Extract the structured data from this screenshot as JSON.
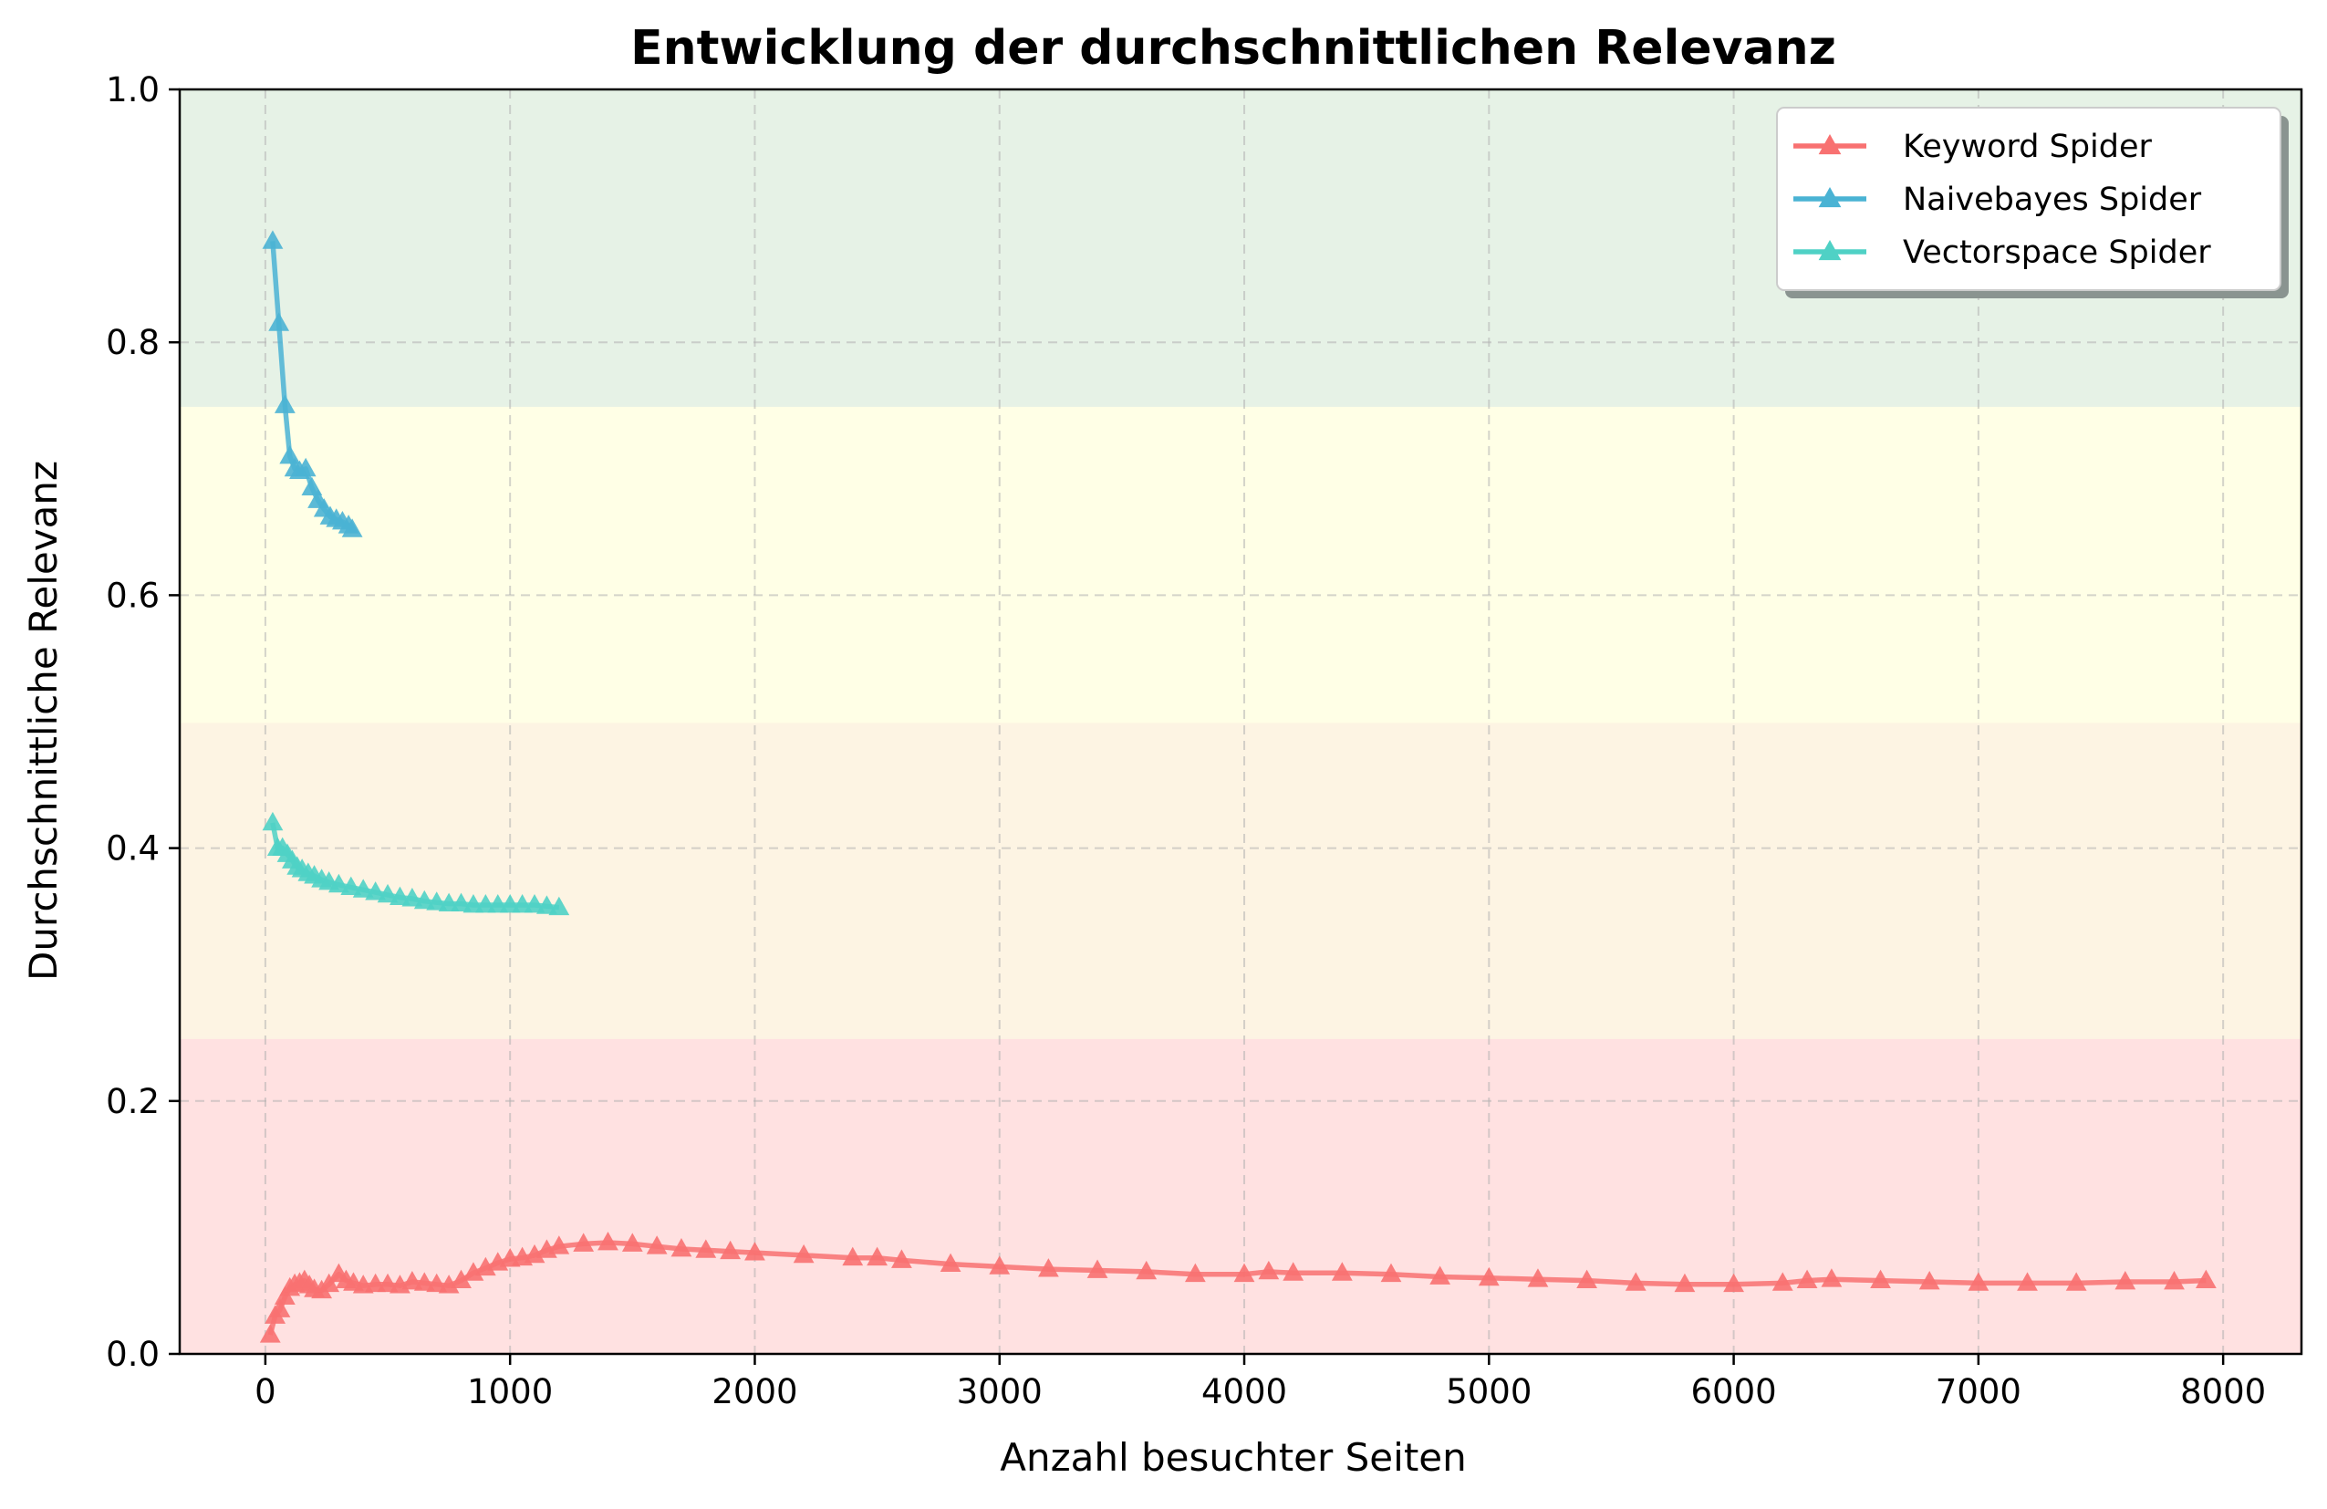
{
  "chart_data": {
    "type": "line",
    "title": "Entwicklung der durchschnittlichen Relevanz",
    "xlabel": "Anzahl besuchter Seiten",
    "ylabel": "Durchschnittliche Relevanz",
    "xlim": [
      -350,
      8320
    ],
    "ylim": [
      0,
      1.0
    ],
    "xticks": [
      0,
      1000,
      2000,
      3000,
      4000,
      5000,
      6000,
      7000,
      8000
    ],
    "xtick_labels": [
      "0",
      "1000",
      "2000",
      "3000",
      "4000",
      "5000",
      "6000",
      "7000",
      "8000"
    ],
    "yticks": [
      0.0,
      0.2,
      0.4,
      0.6,
      0.8,
      1.0
    ],
    "ytick_labels": [
      "0.0",
      "0.2",
      "0.4",
      "0.6",
      "0.8",
      "1.0"
    ],
    "grid": true,
    "legend_position": "top-right",
    "marker": "triangle-up",
    "bands": [
      {
        "from": 0.0,
        "to": 0.25,
        "color": "#ffe1e1"
      },
      {
        "from": 0.25,
        "to": 0.5,
        "color": "#fdf4e3"
      },
      {
        "from": 0.5,
        "to": 0.75,
        "color": "#ffffe6"
      },
      {
        "from": 0.75,
        "to": 1.0,
        "color": "#e6f2e6"
      }
    ],
    "series": [
      {
        "name": "Keyword Spider",
        "color": "#f87171",
        "x": [
          20,
          40,
          60,
          80,
          100,
          120,
          140,
          160,
          180,
          200,
          230,
          260,
          300,
          330,
          360,
          400,
          450,
          500,
          550,
          600,
          650,
          700,
          750,
          800,
          850,
          900,
          950,
          1000,
          1050,
          1100,
          1150,
          1200,
          1300,
          1400,
          1500,
          1600,
          1700,
          1800,
          1900,
          2000,
          2200,
          2400,
          2500,
          2600,
          2800,
          3000,
          3200,
          3400,
          3600,
          3800,
          4000,
          4100,
          4200,
          4400,
          4600,
          4800,
          5000,
          5200,
          5400,
          5600,
          5800,
          6000,
          6200,
          6300,
          6400,
          6600,
          6800,
          7000,
          7200,
          7400,
          7600,
          7800,
          7930
        ],
        "y": [
          0.015,
          0.03,
          0.035,
          0.045,
          0.052,
          0.055,
          0.056,
          0.058,
          0.054,
          0.051,
          0.05,
          0.055,
          0.063,
          0.058,
          0.056,
          0.054,
          0.055,
          0.055,
          0.054,
          0.057,
          0.056,
          0.055,
          0.054,
          0.058,
          0.064,
          0.068,
          0.072,
          0.075,
          0.076,
          0.078,
          0.082,
          0.085,
          0.087,
          0.088,
          0.087,
          0.085,
          0.083,
          0.082,
          0.081,
          0.08,
          0.078,
          0.076,
          0.076,
          0.074,
          0.071,
          0.069,
          0.067,
          0.066,
          0.065,
          0.063,
          0.063,
          0.065,
          0.064,
          0.064,
          0.063,
          0.061,
          0.06,
          0.059,
          0.058,
          0.056,
          0.055,
          0.055,
          0.056,
          0.058,
          0.059,
          0.058,
          0.057,
          0.056,
          0.056,
          0.056,
          0.057,
          0.057,
          0.058
        ]
      },
      {
        "name": "Naivebayes Spider",
        "color": "#4ab3d4",
        "x": [
          30,
          55,
          80,
          100,
          120,
          140,
          165,
          190,
          215,
          240,
          265,
          290,
          315,
          340,
          355
        ],
        "y": [
          0.88,
          0.815,
          0.75,
          0.71,
          0.7,
          0.698,
          0.7,
          0.685,
          0.675,
          0.668,
          0.662,
          0.66,
          0.658,
          0.655,
          0.652
        ]
      },
      {
        "name": "Vectorspace Spider",
        "color": "#4fd1c5",
        "x": [
          30,
          50,
          70,
          90,
          110,
          130,
          150,
          175,
          200,
          230,
          260,
          300,
          350,
          400,
          450,
          500,
          550,
          600,
          650,
          700,
          750,
          800,
          850,
          900,
          950,
          1000,
          1050,
          1100,
          1150,
          1200
        ],
        "y": [
          0.42,
          0.4,
          0.4,
          0.395,
          0.39,
          0.385,
          0.383,
          0.38,
          0.378,
          0.375,
          0.373,
          0.371,
          0.369,
          0.367,
          0.365,
          0.363,
          0.361,
          0.36,
          0.358,
          0.357,
          0.356,
          0.356,
          0.355,
          0.355,
          0.355,
          0.355,
          0.355,
          0.355,
          0.354,
          0.353
        ]
      }
    ]
  }
}
